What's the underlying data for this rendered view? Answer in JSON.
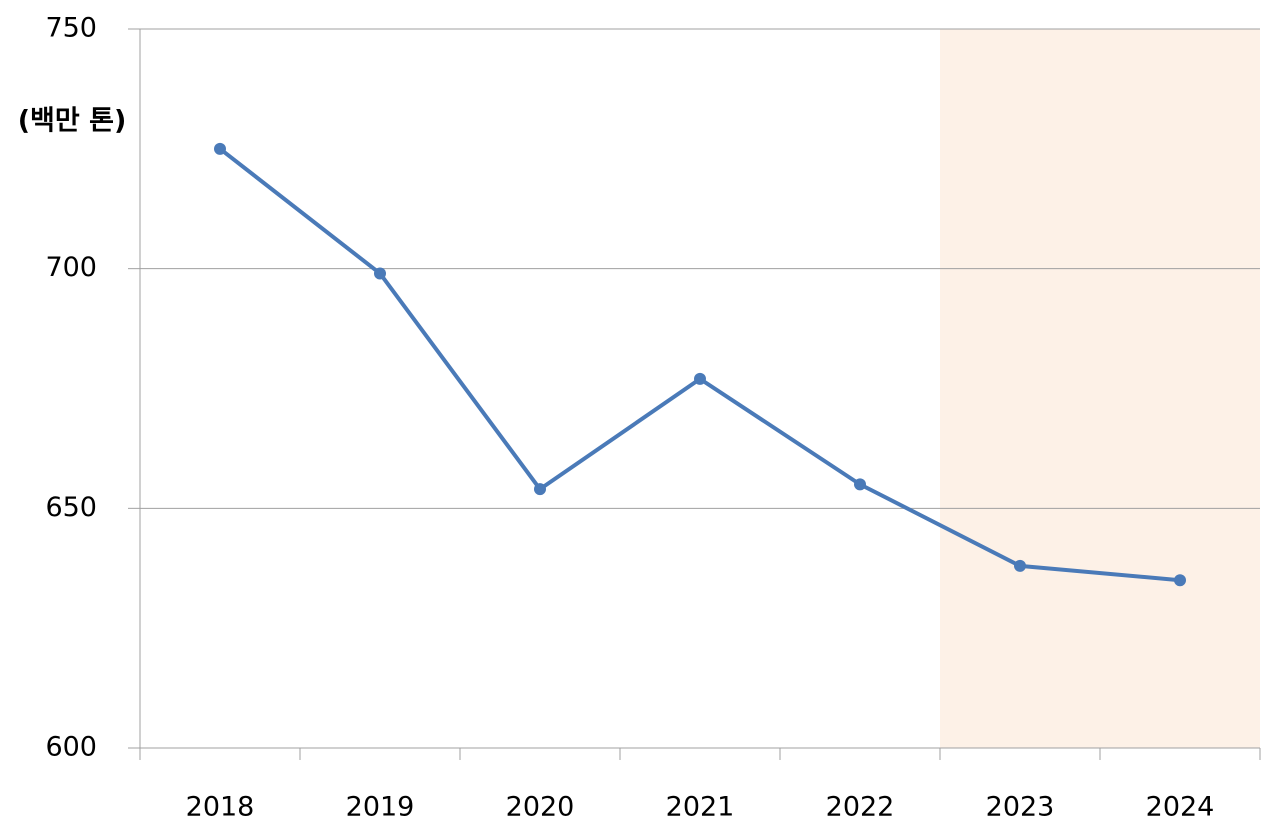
{
  "chart_data": {
    "type": "line",
    "y_label": "(백만 톤)",
    "categories": [
      "2018",
      "2019",
      "2020",
      "2021",
      "2022",
      "2023",
      "2024"
    ],
    "series": [
      {
        "name": "",
        "color": "#4a7ab8",
        "values": [
          725,
          699,
          654,
          677,
          655,
          638,
          635
        ]
      }
    ],
    "ylim": [
      600,
      750
    ],
    "yticks": [
      600,
      650,
      700,
      750
    ],
    "grid": true,
    "shaded_categories": [
      5,
      6
    ],
    "shade_color": "#fdf1e7"
  }
}
